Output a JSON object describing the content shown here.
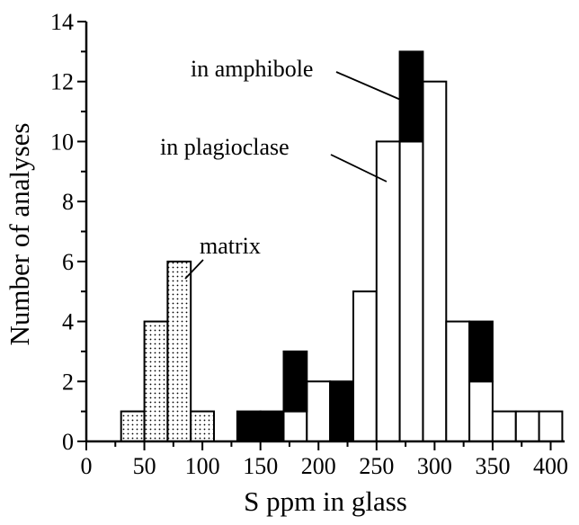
{
  "chart_data": {
    "type": "bar",
    "subtype": "stacked-histogram",
    "xlabel": "S ppm in glass",
    "ylabel": "Number of analyses",
    "xlim": [
      0,
      412
    ],
    "ylim": [
      0,
      14
    ],
    "x_ticks": [
      0,
      50,
      100,
      150,
      200,
      250,
      300,
      350,
      400
    ],
    "y_ticks": [
      0,
      2,
      4,
      6,
      8,
      10,
      12,
      14
    ],
    "bin_width": 20,
    "grid": false,
    "series": [
      {
        "key": "matrix",
        "pattern": "dotted",
        "bins": [
          {
            "x0": 30,
            "count": 1
          },
          {
            "x0": 50,
            "count": 4
          },
          {
            "x0": 70,
            "count": 6
          },
          {
            "x0": 90,
            "count": 1
          }
        ]
      },
      {
        "key": "plagioclase",
        "pattern": "white",
        "bins": [
          {
            "x0": 170,
            "count": 1
          },
          {
            "x0": 190,
            "count": 2
          },
          {
            "x0": 230,
            "count": 5
          },
          {
            "x0": 250,
            "count": 10
          },
          {
            "x0": 270,
            "count": 10
          },
          {
            "x0": 290,
            "count": 12
          },
          {
            "x0": 310,
            "count": 4
          },
          {
            "x0": 330,
            "count": 2
          },
          {
            "x0": 350,
            "count": 1
          },
          {
            "x0": 370,
            "count": 1
          },
          {
            "x0": 390,
            "count": 1
          }
        ]
      },
      {
        "key": "amphibole",
        "pattern": "black",
        "bins": [
          {
            "x0": 130,
            "count": 1
          },
          {
            "x0": 150,
            "count": 1
          },
          {
            "x0": 170,
            "count": 2
          },
          {
            "x0": 210,
            "count": 2
          },
          {
            "x0": 270,
            "count": 3
          },
          {
            "x0": 330,
            "count": 2
          }
        ]
      }
    ],
    "annotations": [
      {
        "key": "amphibole",
        "text": "in amphibole"
      },
      {
        "key": "plagioclase",
        "text": "in plagioclase"
      },
      {
        "key": "matrix",
        "text": "matrix"
      }
    ],
    "colors": {
      "ink": "#000000",
      "fill": "#ffffff",
      "dot": "#000000"
    }
  }
}
